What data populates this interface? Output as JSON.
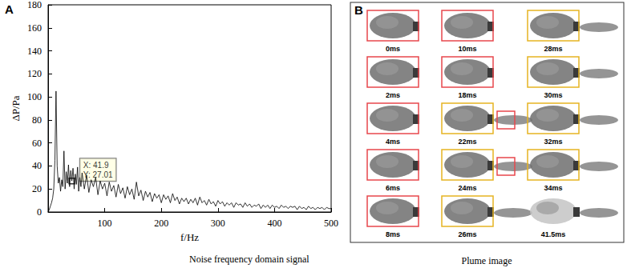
{
  "chart_data": {
    "type": "line",
    "x_label": "f/Hz",
    "y_label": "ΔP/Pa",
    "color": "#000000",
    "x": [
      0,
      2,
      4,
      6,
      8,
      10,
      12,
      14,
      16,
      18,
      20,
      22,
      24,
      26,
      28,
      30,
      32,
      34,
      36,
      38,
      40,
      41.9,
      44,
      46,
      48,
      50,
      52,
      54,
      56,
      58,
      60,
      64,
      68,
      72,
      76,
      80,
      84,
      88,
      92,
      96,
      100,
      104,
      108,
      112,
      116,
      120,
      124,
      128,
      132,
      136,
      140,
      144,
      148,
      152,
      156,
      160,
      164,
      168,
      172,
      176,
      180,
      184,
      188,
      192,
      196,
      200,
      204,
      208,
      212,
      216,
      220,
      224,
      228,
      232,
      236,
      240,
      244,
      248,
      252,
      256,
      260,
      264,
      268,
      272,
      276,
      280,
      284,
      288,
      292,
      296,
      300,
      304,
      308,
      312,
      316,
      320,
      324,
      328,
      332,
      336,
      340,
      344,
      348,
      352,
      356,
      360,
      364,
      368,
      372,
      376,
      380,
      384,
      388,
      392,
      396,
      400,
      404,
      408,
      412,
      416,
      420,
      424,
      428,
      432,
      436,
      440,
      444,
      448,
      452,
      456,
      460,
      464,
      468,
      472,
      476,
      480,
      484,
      488,
      492,
      496,
      500
    ],
    "values": [
      0,
      2,
      5,
      8,
      12,
      20,
      45,
      105,
      40,
      25,
      30,
      18,
      28,
      22,
      53,
      20,
      35,
      25,
      41,
      22,
      36,
      27.01,
      38,
      20,
      33,
      24,
      39,
      18,
      30,
      22,
      34,
      20,
      32,
      17,
      28,
      22,
      30,
      15,
      27,
      20,
      25,
      14,
      26,
      18,
      23,
      13,
      24,
      16,
      21,
      12,
      22,
      15,
      20,
      11,
      26,
      14,
      19,
      10,
      18,
      13,
      17,
      9,
      16,
      12,
      15,
      8,
      15,
      11,
      14,
      8,
      16,
      10,
      13,
      7,
      12,
      9,
      12,
      7,
      11,
      8,
      12,
      6,
      13,
      8,
      10,
      6,
      11,
      7,
      9,
      5,
      10,
      7,
      9,
      5,
      8,
      6,
      8,
      4,
      8,
      6,
      7,
      4,
      8,
      5,
      7,
      4,
      6,
      5,
      7,
      3,
      6,
      4,
      6,
      3,
      6,
      4,
      5,
      3,
      6,
      4,
      5,
      3,
      5,
      4,
      5,
      2,
      5,
      3,
      4,
      2,
      5,
      3,
      4,
      2,
      4,
      3,
      4,
      2,
      4,
      3,
      3
    ],
    "xlim": [
      0,
      500
    ],
    "xticks": [
      100,
      200,
      300,
      400,
      500
    ],
    "ylim": [
      0,
      180
    ],
    "yticks": [
      0,
      20,
      40,
      60,
      80,
      100,
      120,
      140,
      160,
      180
    ],
    "grid": false,
    "annotations": [
      {
        "x": 41.9,
        "y": 27.01,
        "text": [
          "X: 41.9",
          "Y: 27.01"
        ]
      }
    ]
  },
  "panel_a": {
    "letter": "A",
    "caption": "Noise frequency domain signal"
  },
  "panel_b": {
    "letter": "B",
    "caption": "Plume image",
    "frames": [
      {
        "label": "0ms",
        "boxes": [
          "#e8474c"
        ]
      },
      {
        "label": "2ms",
        "boxes": [
          "#e8474c"
        ]
      },
      {
        "label": "4ms",
        "boxes": [
          "#e8474c"
        ]
      },
      {
        "label": "6ms",
        "boxes": [
          "#e8474c"
        ]
      },
      {
        "label": "8ms",
        "boxes": [
          "#e8474c"
        ]
      },
      {
        "label": "10ms",
        "boxes": [
          "#e8474c"
        ]
      },
      {
        "label": "18ms",
        "boxes": [
          "#e8474c"
        ]
      },
      {
        "label": "22ms",
        "boxes": [
          "#e6b422",
          "#e8474c"
        ]
      },
      {
        "label": "24ms",
        "boxes": [
          "#e6b422",
          "#e8474c"
        ]
      },
      {
        "label": "26ms",
        "boxes": [
          "#e6b422"
        ]
      },
      {
        "label": "28ms",
        "boxes": [
          "#e6b422"
        ]
      },
      {
        "label": "30ms",
        "boxes": [
          "#e6b422"
        ]
      },
      {
        "label": "32ms",
        "boxes": [
          "#e6b422"
        ]
      },
      {
        "label": "34ms",
        "boxes": [
          "#e6b422"
        ]
      },
      {
        "label": "41.5ms",
        "boxes": []
      }
    ]
  }
}
